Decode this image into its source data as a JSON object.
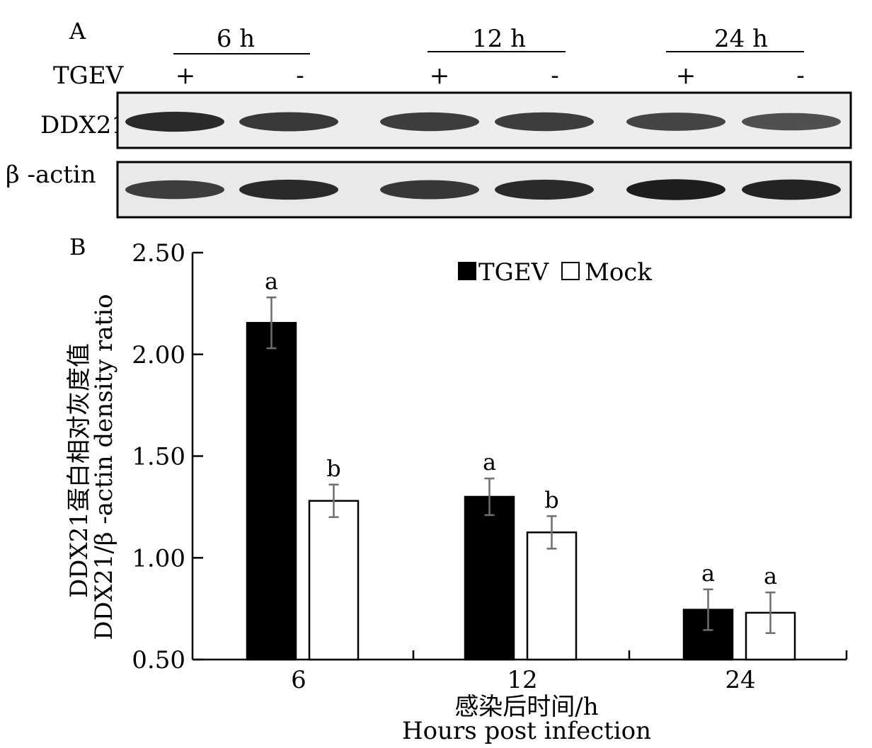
{
  "panel_a": {
    "label": "A",
    "timepoints": [
      "6 h",
      "12 h",
      "24 h"
    ],
    "treatment_label": "TGEV",
    "lane_signs": [
      "+",
      "-",
      "+",
      "-",
      "+",
      "-"
    ],
    "rows": [
      {
        "label": "DDX21",
        "band_intensity": [
          0.85,
          0.75,
          0.7,
          0.7,
          0.65,
          0.55
        ]
      },
      {
        "label": "β -actin",
        "band_intensity": [
          0.7,
          0.85,
          0.75,
          0.85,
          0.95,
          0.9
        ]
      }
    ]
  },
  "panel_b": {
    "label": "B"
  },
  "chart_data": {
    "type": "bar",
    "categories": [
      "6",
      "12",
      "24"
    ],
    "series": [
      {
        "name": "TGEV",
        "color": "#000000",
        "values": [
          2.155,
          1.3,
          0.745
        ],
        "errors": [
          0.125,
          0.09,
          0.1
        ],
        "sig": [
          "a",
          "a",
          "a"
        ]
      },
      {
        "name": "Mock",
        "color": "#ffffff",
        "values": [
          1.28,
          1.125,
          0.73
        ],
        "errors": [
          0.08,
          0.08,
          0.1
        ],
        "sig": [
          "b",
          "b",
          "a"
        ]
      }
    ],
    "xlabel": [
      "感染后时间/h",
      "Hours post infection"
    ],
    "ylabel": [
      "DDX21蛋白相对灰度值",
      "DDX21/β -actin density ratio"
    ],
    "ylim": [
      0.5,
      2.5
    ],
    "yticks": [
      "0.50",
      "1.00",
      "1.50",
      "2.00",
      "2.50"
    ],
    "legend_position": "top-right",
    "grid": false
  }
}
